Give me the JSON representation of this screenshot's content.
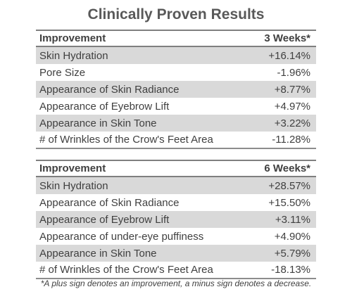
{
  "title": "Clinically Proven Results",
  "tables": [
    {
      "header": {
        "label": "Improvement",
        "period": "3 Weeks*"
      },
      "rows": [
        {
          "label": "Skin Hydration",
          "value": "+16.14%"
        },
        {
          "label": "Pore Size",
          "value": "-1.96%"
        },
        {
          "label": "Appearance of Skin Radiance",
          "value": "+8.77%"
        },
        {
          "label": "Appearance of Eyebrow Lift",
          "value": "+4.97%"
        },
        {
          "label": "Appearance in Skin Tone",
          "value": "+3.22%"
        },
        {
          "label": "# of Wrinkles of the Crow's Feet Area",
          "value": "-11.28%"
        }
      ]
    },
    {
      "header": {
        "label": "Improvement",
        "period": "6 Weeks*"
      },
      "rows": [
        {
          "label": "Skin Hydration",
          "value": "+28.57%"
        },
        {
          "label": "Appearance of Skin Radiance",
          "value": "+15.50%"
        },
        {
          "label": "Appearance of Eyebrow Lift",
          "value": "+3.11%"
        },
        {
          "label": "Appearance of under-eye puffiness",
          "value": "+4.90%"
        },
        {
          "label": "Appearance in Skin Tone",
          "value": "+5.79%"
        },
        {
          "label": "# of Wrinkles of the Crow's Feet Area",
          "value": "-18.13%"
        }
      ]
    }
  ],
  "footnote": "*A plus sign denotes an improvement, a minus sign denotes a decrease.",
  "colors": {
    "shaded_row": "#d9d9d9",
    "text": "#404040",
    "rule": "#7f7f7f"
  }
}
